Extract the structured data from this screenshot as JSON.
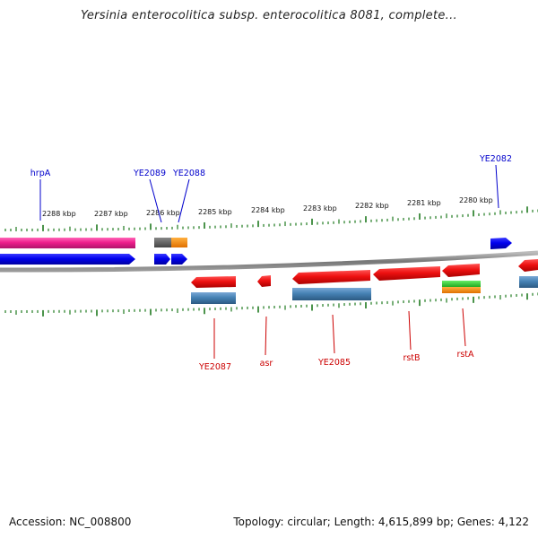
{
  "title": "Yersinia enterocolitica subsp. enterocolitica 8081, complete...",
  "footer": {
    "accession": "Accession: NC_008800",
    "summary": "Topology: circular; Length: 4,615,899 bp; Genes: 4,122"
  },
  "ticks": [
    "2288 kbp",
    "2287 kbp",
    "2286 kbp",
    "2285 kbp",
    "2284 kbp",
    "2283 kbp",
    "2282 kbp",
    "2281 kbp",
    "2280 kbp"
  ],
  "genes_top": [
    "hrpA",
    "YE2089",
    "YE2088",
    "YE2082"
  ],
  "genes_bottom": [
    "YE2087",
    "asr",
    "YE2085",
    "rstB",
    "rstA"
  ],
  "colors": {
    "gene_red": "#ee1111",
    "gene_blue": "#0000ee",
    "gene_pink": "#ee1e8c",
    "feature_steelblue": "#4682b4",
    "feature_gray": "#666666",
    "feature_orange": "#ff8c00",
    "feature_green": "#33cc33",
    "tick_green": "#1f7a1f",
    "backbone": "#888888",
    "label_blue": "#0000cc",
    "label_red": "#cc0000"
  }
}
